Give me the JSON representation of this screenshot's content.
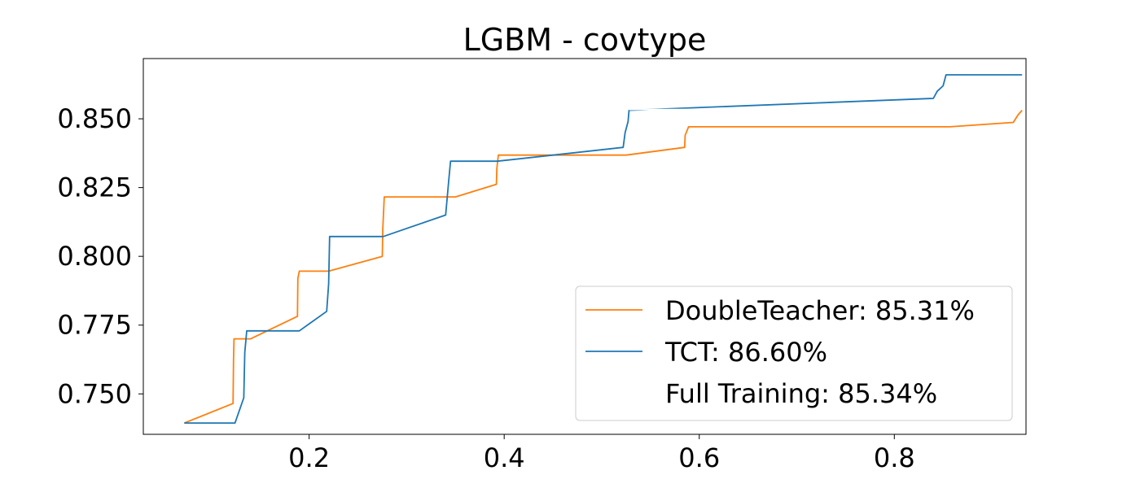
{
  "chart_data": {
    "type": "line",
    "title": "LGBM - covtype",
    "xlabel": "",
    "ylabel": "",
    "xlim": [
      0.03,
      0.935
    ],
    "ylim": [
      0.7353,
      0.8719
    ],
    "xticks": [
      0.2,
      0.4,
      0.6,
      0.8
    ],
    "xtick_labels": [
      "0.2",
      "0.4",
      "0.6",
      "0.8"
    ],
    "yticks": [
      0.75,
      0.775,
      0.8,
      0.825,
      0.85
    ],
    "ytick_labels": [
      "0.750",
      "0.775",
      "0.800",
      "0.825",
      "0.850"
    ],
    "grid": false,
    "legend_position": "lower-right",
    "legend": [
      {
        "label": "DoubleTeacher: 85.31%",
        "color": "#ff7f0e"
      },
      {
        "label": "TCT: 86.60%",
        "color": "#1f77b4"
      },
      {
        "label": "Full Training: 85.34%",
        "color": "#ffffff"
      }
    ],
    "series": [
      {
        "name": "DoubleTeacher",
        "color": "#ff7f0e",
        "points": [
          [
            0.072,
            0.7394
          ],
          [
            0.122,
            0.7465
          ],
          [
            0.1225,
            0.7625
          ],
          [
            0.123,
            0.77
          ],
          [
            0.14,
            0.77
          ],
          [
            0.188,
            0.7782
          ],
          [
            0.1885,
            0.792
          ],
          [
            0.19,
            0.7946
          ],
          [
            0.22,
            0.7946
          ],
          [
            0.275,
            0.8
          ],
          [
            0.2755,
            0.81
          ],
          [
            0.277,
            0.8216
          ],
          [
            0.35,
            0.8216
          ],
          [
            0.392,
            0.8262
          ],
          [
            0.3925,
            0.832
          ],
          [
            0.394,
            0.8368
          ],
          [
            0.525,
            0.8368
          ],
          [
            0.585,
            0.8396
          ],
          [
            0.5855,
            0.844
          ],
          [
            0.589,
            0.8471
          ],
          [
            0.857,
            0.8471
          ],
          [
            0.922,
            0.8487
          ],
          [
            0.927,
            0.8515
          ],
          [
            0.931,
            0.8531
          ]
        ]
      },
      {
        "name": "TCT",
        "color": "#1f77b4",
        "points": [
          [
            0.072,
            0.7394
          ],
          [
            0.124,
            0.7394
          ],
          [
            0.133,
            0.7486
          ],
          [
            0.134,
            0.765
          ],
          [
            0.136,
            0.7729
          ],
          [
            0.19,
            0.7729
          ],
          [
            0.218,
            0.78
          ],
          [
            0.22,
            0.79
          ],
          [
            0.221,
            0.8072
          ],
          [
            0.276,
            0.8072
          ],
          [
            0.34,
            0.815
          ],
          [
            0.343,
            0.827
          ],
          [
            0.345,
            0.8346
          ],
          [
            0.393,
            0.8346
          ],
          [
            0.522,
            0.8396
          ],
          [
            0.524,
            0.845
          ],
          [
            0.527,
            0.849
          ],
          [
            0.528,
            0.8531
          ],
          [
            0.84,
            0.8574
          ],
          [
            0.844,
            0.86
          ],
          [
            0.85,
            0.862
          ],
          [
            0.853,
            0.866
          ],
          [
            0.931,
            0.866
          ]
        ]
      },
      {
        "name": "Full Training",
        "color": "#ffffff",
        "points": [
          [
            0.528,
            0.8534
          ],
          [
            0.645,
            0.8534
          ]
        ]
      }
    ]
  }
}
